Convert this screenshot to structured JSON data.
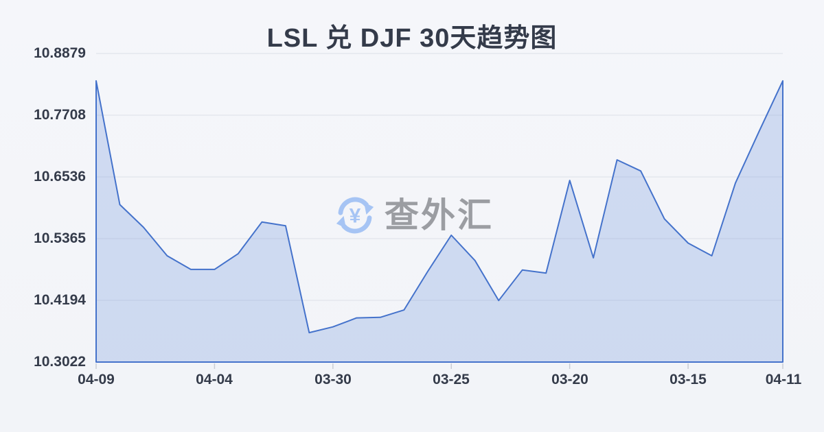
{
  "header": {
    "title": "LSL 兑 DJF 30天趋势图"
  },
  "watermark": {
    "text": "查外汇",
    "icon": "currency-exchange-icon",
    "currency_symbol": "¥",
    "icon_color": "#a6c4f4",
    "text_color": "#9b9da2"
  },
  "chart_data": {
    "type": "area",
    "title": "LSL 兑 DJF 30天趋势图",
    "x_tick_labels": [
      "04-09",
      "04-04",
      "03-30",
      "03-25",
      "03-20",
      "03-15",
      "04-11"
    ],
    "x_tick_indices": [
      0,
      5,
      10,
      15,
      20,
      25,
      29
    ],
    "y_tick_labels": [
      "10.8879",
      "10.7708",
      "10.6536",
      "10.5365",
      "10.4194",
      "10.3022"
    ],
    "y_min": 10.3022,
    "y_max": 10.8879,
    "x_count": 30,
    "values": [
      10.836,
      10.601,
      10.558,
      10.504,
      10.478,
      10.478,
      10.508,
      10.568,
      10.561,
      10.358,
      10.369,
      10.386,
      10.387,
      10.401,
      10.474,
      10.543,
      10.495,
      10.419,
      10.477,
      10.471,
      10.647,
      10.5,
      10.686,
      10.665,
      10.574,
      10.528,
      10.504,
      10.642,
      10.74,
      10.836
    ],
    "line_color": "#4472cb",
    "fill_color": "rgba(122,156,222,0.30)",
    "grid_color": "#e4e7ee",
    "tick_color": "#c9ccd4",
    "label_color": "#343b4a",
    "grid": true,
    "legend": "none"
  }
}
